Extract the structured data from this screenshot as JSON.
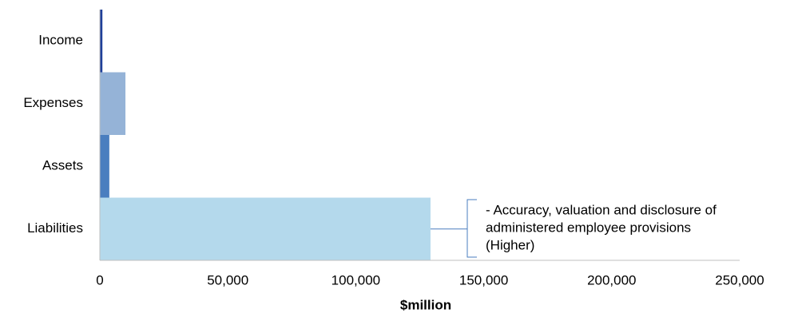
{
  "chart_data": {
    "type": "hbar",
    "categories": [
      "Income",
      "Expenses",
      "Assets",
      "Liabilities"
    ],
    "values": [
      1000,
      10000,
      3700,
      129200
    ],
    "colors": [
      "#1f3f99",
      "#95b3d7",
      "#4a7ebf",
      "#b4d9ec"
    ],
    "xlabel": "$million",
    "xlim": [
      0,
      250000
    ],
    "xticks": [
      0,
      {
        "value": 50000,
        "label": "50,000"
      },
      {
        "value": 100000,
        "label": "100,000"
      },
      {
        "value": 150000,
        "label": "150,000"
      },
      {
        "value": 200000,
        "label": "200,000"
      },
      {
        "value": 250000,
        "label": "250,000"
      }
    ],
    "grid": false,
    "annotation": {
      "category": 3,
      "lines": [
        "- Accuracy, valuation and disclosure of",
        "administered employee provisions",
        "(Higher)"
      ]
    }
  }
}
